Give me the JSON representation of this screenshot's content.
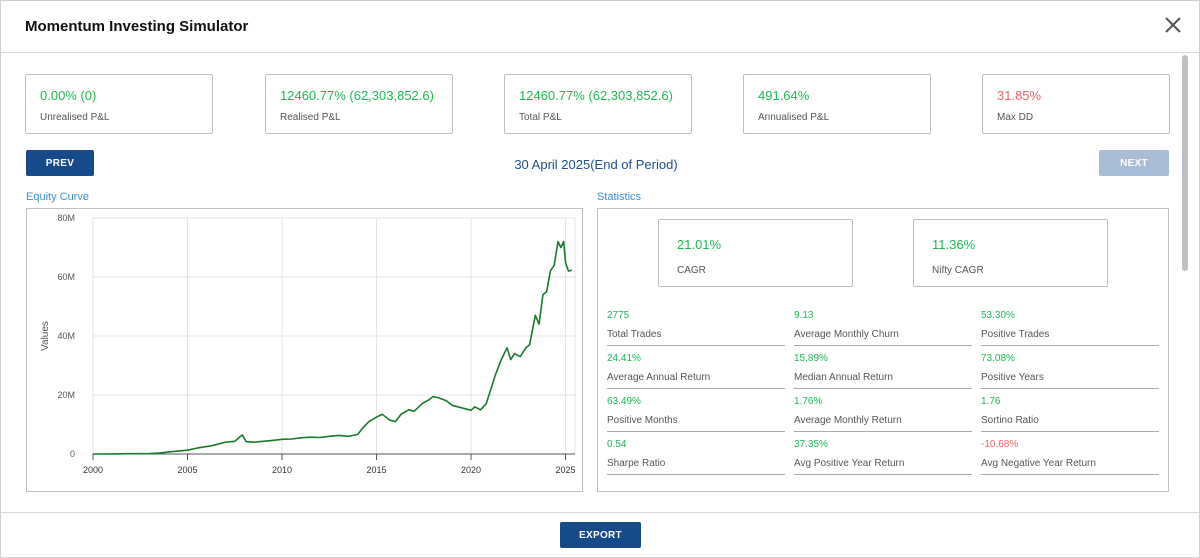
{
  "title": "Momentum Investing Simulator",
  "summary_cards": [
    {
      "value": "0.00% (0)",
      "label": "Unrealised P&L",
      "status": "positive"
    },
    {
      "value": "12460.77% (62,303,852.6)",
      "label": "Realised P&L",
      "status": "positive"
    },
    {
      "value": "12460.77% (62,303,852.6)",
      "label": "Total P&L",
      "status": "positive"
    },
    {
      "value": "491.64%",
      "label": "Annualised P&L",
      "status": "positive"
    },
    {
      "value": "31.85%",
      "label": "Max DD",
      "status": "negative"
    }
  ],
  "navigation": {
    "prev_label": "PREV",
    "next_label": "NEXT",
    "period": "30 April 2025(End of Period)"
  },
  "equity_section_title": "Equity Curve",
  "statistics_section_title": "Statistics",
  "chart_data": {
    "type": "line",
    "ylabel": "Values",
    "xlim": [
      2000,
      2025.5
    ],
    "ylim": [
      0,
      80000000
    ],
    "x_ticks": [
      "2000",
      "2005",
      "2010",
      "2015",
      "2020",
      "2025"
    ],
    "y_ticks": [
      "0",
      "20M",
      "40M",
      "60M",
      "80M"
    ],
    "grid": true,
    "series": [
      {
        "color": "#1a7a2c",
        "x": [
          2000,
          2001,
          2002,
          2003,
          2003.5,
          2004,
          2004.5,
          2005,
          2005.5,
          2006,
          2006.3,
          2006.7,
          2007,
          2007.5,
          2007.9,
          2008.1,
          2008.5,
          2009,
          2009.5,
          2010,
          2010.5,
          2011,
          2011.5,
          2012,
          2012.5,
          2013,
          2013.5,
          2014,
          2014.3,
          2014.6,
          2015,
          2015.3,
          2015.7,
          2016,
          2016.3,
          2016.7,
          2017,
          2017.4,
          2017.8,
          2018,
          2018.3,
          2018.7,
          2019,
          2019.3,
          2019.6,
          2020,
          2020.2,
          2020.5,
          2020.8,
          2021,
          2021.3,
          2021.6,
          2021.9,
          2022.1,
          2022.3,
          2022.6,
          2022.9,
          2023.1,
          2023.4,
          2023.6,
          2023.8,
          2024,
          2024.2,
          2024.4,
          2024.6,
          2024.75,
          2024.9,
          2025,
          2025.15,
          2025.33
        ],
        "y": [
          0,
          50000,
          100000,
          150000,
          300000,
          700000,
          1000000,
          1300000,
          2000000,
          2500000,
          2800000,
          3500000,
          4000000,
          4300000,
          6500000,
          4200000,
          4000000,
          4300000,
          4600000,
          5000000,
          5100000,
          5500000,
          5700000,
          5600000,
          6000000,
          6300000,
          6000000,
          6600000,
          9000000,
          11000000,
          12500000,
          13500000,
          11500000,
          11000000,
          13500000,
          15000000,
          14500000,
          17000000,
          18500000,
          19500000,
          19000000,
          18000000,
          16500000,
          16000000,
          15500000,
          14800000,
          16000000,
          15000000,
          17000000,
          21000000,
          27000000,
          32000000,
          36000000,
          32000000,
          34000000,
          33000000,
          36000000,
          37000000,
          47000000,
          44000000,
          54000000,
          55000000,
          62000000,
          64000000,
          72000000,
          70000000,
          72000000,
          65000000,
          62000000,
          62300000
        ]
      }
    ]
  },
  "cagr_cards": [
    {
      "value": "21.01%",
      "label": "CAGR"
    },
    {
      "value": "11.36%",
      "label": "Nifty CAGR"
    }
  ],
  "metrics": [
    {
      "value": "2775",
      "label": "Total Trades",
      "status": "positive"
    },
    {
      "value": "9.13",
      "label": "Average Monthly Churn",
      "status": "positive"
    },
    {
      "value": "53.30%",
      "label": "Positive Trades",
      "status": "positive"
    },
    {
      "value": "24.41%",
      "label": "Average Annual Return",
      "status": "positive"
    },
    {
      "value": "15.89%",
      "label": "Median Annual Return",
      "status": "positive"
    },
    {
      "value": "73.08%",
      "label": "Positive Years",
      "status": "positive"
    },
    {
      "value": "63.49%",
      "label": "Positive Months",
      "status": "positive"
    },
    {
      "value": "1.76%",
      "label": "Average Monthly Return",
      "status": "positive"
    },
    {
      "value": "1.76",
      "label": "Sortino Ratio",
      "status": "positive"
    },
    {
      "value": "0.54",
      "label": "Sharpe Ratio",
      "status": "positive"
    },
    {
      "value": "37.35%",
      "label": "Avg Positive Year Return",
      "status": "positive"
    },
    {
      "value": "-10.68%",
      "label": "Avg Negative Year Return",
      "status": "negative"
    }
  ],
  "footer": {
    "export_label": "EXPORT"
  },
  "colors": {
    "positive": "#1db954",
    "negative": "#f06262",
    "primary_button": "#174a8b",
    "disabled_button": "#a9bdd6",
    "section_title": "#3d8fd6",
    "line": "#1a7a2c"
  },
  "icons": {
    "close": "close-icon"
  }
}
